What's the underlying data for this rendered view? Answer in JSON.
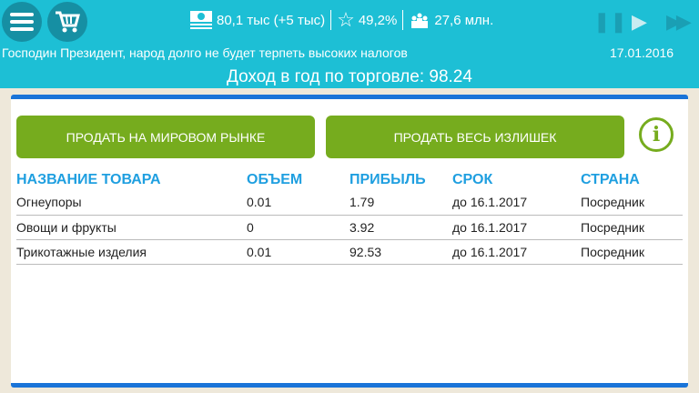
{
  "header": {
    "money": "80,1 тыс (+5 тыс)",
    "approval": "49,2%",
    "population": "27,6 млн.",
    "message": "Господин Президент, народ долго не будет терпеть высоких налогов",
    "date": "17.01.2016",
    "income": "Доход в год по торговле: 98.24"
  },
  "buttons": {
    "sell_world": "ПРОДАТЬ НА МИРОВОМ РЫНКЕ",
    "sell_all": "ПРОДАТЬ ВЕСЬ ИЗЛИШЕК"
  },
  "table": {
    "headers": [
      "НАЗВАНИЕ ТОВАРА",
      "ОБЪЕМ",
      "ПРИБЫЛЬ",
      "СРОК",
      "СТРАНА"
    ],
    "rows": [
      [
        "Огнеупоры",
        "0.01",
        "1.79",
        "до 16.1.2017",
        "Посредник"
      ],
      [
        "Овощи и фрукты",
        "0",
        "3.92",
        "до 16.1.2017",
        "Посредник"
      ],
      [
        "Трикотажные изделия",
        "0.01",
        "92.53",
        "до 16.1.2017",
        "Посредник"
      ]
    ]
  },
  "colors": {
    "header": "#1dbfd5",
    "button": "#76ac1e",
    "accent": "#1a74d8",
    "column_header": "#1f9fe0"
  }
}
